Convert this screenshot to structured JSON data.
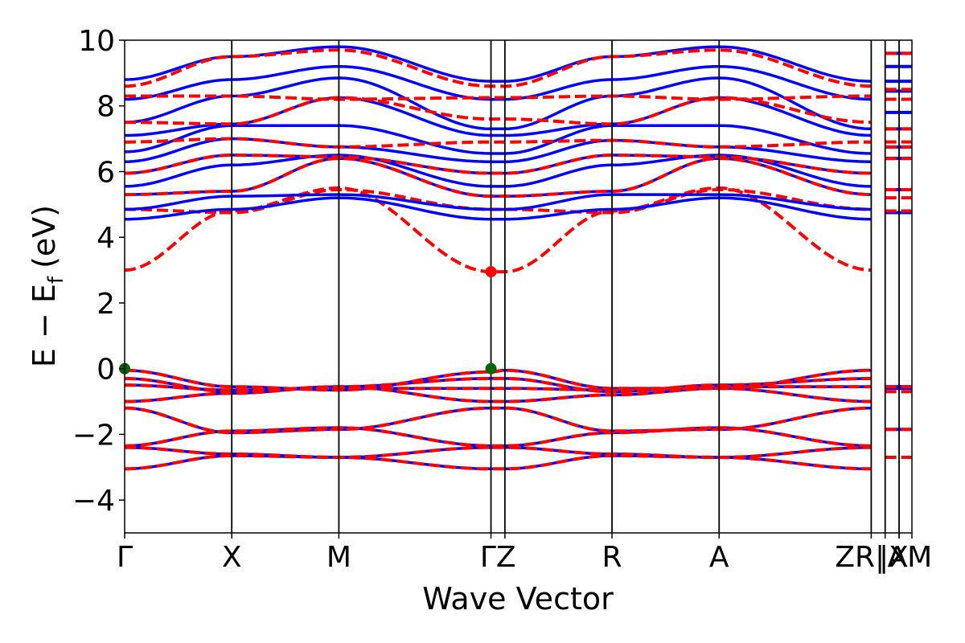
{
  "chart_data": {
    "type": "line",
    "title": "",
    "xlabel": "Wave Vector",
    "ylabel": "E − E",
    "ylabel_subscript": "f",
    "ylabel_unit": "(eV)",
    "ylim": [
      -5,
      10
    ],
    "yticks": [
      -4,
      -2,
      0,
      2,
      4,
      6,
      8,
      10
    ],
    "ytick_labels": [
      "−4",
      "−2",
      "0",
      "2",
      "4",
      "6",
      "8",
      "10"
    ],
    "xlim": [
      0,
      7.35
    ],
    "kpoints": [
      {
        "label": "Γ",
        "x": 0
      },
      {
        "label": "X",
        "x": 1.0
      },
      {
        "label": "M",
        "x": 2.0
      },
      {
        "label": "Γ",
        "x": 3.42
      },
      {
        "label": "Z",
        "x": 3.55
      },
      {
        "label": "R",
        "x": 4.55
      },
      {
        "label": "A",
        "x": 5.55
      },
      {
        "label": "Z",
        "x": 6.97
      },
      {
        "label": "R|",
        "x": 7.1
      },
      {
        "label": "|X",
        "x": 7.23
      },
      {
        "label": "A",
        "x": 7.23
      },
      {
        "label": "M",
        "x": 7.35
      }
    ],
    "tick_label_text": [
      "Γ",
      "X",
      "M",
      "ΓZ",
      "R",
      "A",
      "ZR|",
      "|X",
      "AM"
    ],
    "grid": false,
    "legend": "none",
    "colors": {
      "spin_up": "#0000ff",
      "spin_down": "#ff0000",
      "vbm": "#006400",
      "cbm": "#ff0000"
    },
    "x_nodes": [
      0,
      1.0,
      2.0,
      3.42,
      3.55,
      4.55,
      5.55,
      6.97
    ],
    "series": [
      {
        "style": "solid",
        "color": "#0000ff",
        "values": [
          -0.05,
          -0.55,
          -0.65,
          -0.1,
          -0.05,
          -0.6,
          -0.6,
          -0.05
        ]
      },
      {
        "style": "solid",
        "color": "#0000ff",
        "values": [
          -0.3,
          -0.7,
          -0.55,
          -0.3,
          -0.3,
          -0.7,
          -0.5,
          -0.3
        ]
      },
      {
        "style": "solid",
        "color": "#0000ff",
        "values": [
          -0.5,
          -0.65,
          -0.6,
          -0.6,
          -0.6,
          -0.65,
          -0.55,
          -0.55
        ]
      },
      {
        "style": "solid",
        "color": "#0000ff",
        "values": [
          -1.0,
          -0.75,
          -0.55,
          -1.0,
          -1.0,
          -0.8,
          -0.6,
          -1.0
        ]
      },
      {
        "style": "solid",
        "color": "#0000ff",
        "values": [
          -1.2,
          -1.95,
          -1.85,
          -1.2,
          -1.2,
          -1.9,
          -1.85,
          -1.2
        ]
      },
      {
        "style": "solid",
        "color": "#0000ff",
        "values": [
          -2.35,
          -1.9,
          -1.8,
          -2.35,
          -2.35,
          -1.95,
          -1.8,
          -2.35
        ]
      },
      {
        "style": "solid",
        "color": "#0000ff",
        "values": [
          -2.4,
          -2.6,
          -2.7,
          -2.4,
          -2.4,
          -2.6,
          -2.7,
          -2.4
        ]
      },
      {
        "style": "solid",
        "color": "#0000ff",
        "values": [
          -3.05,
          -2.65,
          -2.7,
          -3.05,
          -3.05,
          -2.65,
          -2.7,
          -3.05
        ]
      },
      {
        "style": "dashed",
        "color": "#ff0000",
        "values": [
          -0.05,
          -0.55,
          -0.65,
          -0.1,
          -0.05,
          -0.6,
          -0.6,
          -0.05
        ]
      },
      {
        "style": "dashed",
        "color": "#ff0000",
        "values": [
          -0.3,
          -0.7,
          -0.55,
          -0.3,
          -0.3,
          -0.7,
          -0.5,
          -0.3
        ]
      },
      {
        "style": "dashed",
        "color": "#ff0000",
        "values": [
          -0.5,
          -0.65,
          -0.6,
          -0.6,
          -0.6,
          -0.65,
          -0.55,
          -0.55
        ]
      },
      {
        "style": "dashed",
        "color": "#ff0000",
        "values": [
          -1.0,
          -0.75,
          -0.55,
          -1.0,
          -1.0,
          -0.8,
          -0.6,
          -1.0
        ]
      },
      {
        "style": "dashed",
        "color": "#ff0000",
        "values": [
          -1.2,
          -1.95,
          -1.85,
          -1.2,
          -1.2,
          -1.9,
          -1.85,
          -1.2
        ]
      },
      {
        "style": "dashed",
        "color": "#ff0000",
        "values": [
          -2.35,
          -1.9,
          -1.8,
          -2.35,
          -2.35,
          -1.95,
          -1.8,
          -2.35
        ]
      },
      {
        "style": "dashed",
        "color": "#ff0000",
        "values": [
          -2.4,
          -2.6,
          -2.7,
          -2.4,
          -2.4,
          -2.6,
          -2.7,
          -2.4
        ]
      },
      {
        "style": "dashed",
        "color": "#ff0000",
        "values": [
          -3.05,
          -2.65,
          -2.7,
          -3.05,
          -3.05,
          -2.65,
          -2.7,
          -3.05
        ]
      },
      {
        "style": "dashed",
        "color": "#ff0000",
        "values": [
          3.0,
          4.8,
          5.5,
          2.95,
          2.95,
          4.8,
          5.5,
          3.0
        ]
      },
      {
        "style": "dashed",
        "color": "#ff0000",
        "values": [
          4.85,
          4.75,
          5.45,
          4.85,
          4.85,
          4.75,
          5.45,
          4.85
        ]
      },
      {
        "style": "solid",
        "color": "#0000ff",
        "values": [
          4.55,
          4.85,
          5.2,
          4.55,
          4.55,
          4.85,
          5.2,
          4.55
        ]
      },
      {
        "style": "solid",
        "color": "#0000ff",
        "values": [
          4.85,
          5.25,
          5.3,
          4.85,
          4.85,
          5.3,
          5.3,
          4.85
        ]
      },
      {
        "style": "solid",
        "color": "#0000ff",
        "values": [
          5.3,
          5.4,
          6.4,
          5.25,
          5.25,
          5.4,
          6.4,
          5.3
        ]
      },
      {
        "style": "solid",
        "color": "#0000ff",
        "values": [
          5.55,
          6.2,
          6.5,
          5.55,
          5.55,
          6.2,
          6.5,
          5.55
        ]
      },
      {
        "style": "solid",
        "color": "#0000ff",
        "values": [
          5.95,
          6.5,
          6.45,
          5.95,
          5.95,
          6.5,
          6.45,
          5.95
        ]
      },
      {
        "style": "solid",
        "color": "#0000ff",
        "values": [
          6.3,
          7.0,
          6.75,
          6.3,
          6.3,
          6.95,
          6.75,
          6.3
        ]
      },
      {
        "style": "solid",
        "color": "#0000ff",
        "values": [
          6.6,
          7.4,
          7.4,
          6.55,
          6.55,
          7.4,
          7.4,
          6.55
        ]
      },
      {
        "style": "solid",
        "color": "#0000ff",
        "values": [
          7.1,
          7.45,
          8.25,
          7.1,
          7.1,
          7.45,
          8.25,
          7.1
        ]
      },
      {
        "style": "solid",
        "color": "#0000ff",
        "values": [
          7.5,
          8.3,
          8.85,
          7.3,
          7.3,
          8.3,
          8.85,
          7.3
        ]
      },
      {
        "style": "solid",
        "color": "#0000ff",
        "values": [
          8.2,
          8.8,
          9.2,
          8.2,
          8.2,
          8.8,
          9.2,
          8.2
        ]
      },
      {
        "style": "solid",
        "color": "#0000ff",
        "values": [
          8.8,
          9.5,
          9.8,
          8.75,
          8.75,
          9.5,
          9.8,
          8.75
        ]
      },
      {
        "style": "dashed",
        "color": "#ff0000",
        "values": [
          5.3,
          5.4,
          6.4,
          5.25,
          5.25,
          5.4,
          6.4,
          5.3
        ]
      },
      {
        "style": "dashed",
        "color": "#ff0000",
        "values": [
          5.95,
          6.5,
          6.45,
          5.95,
          5.95,
          6.5,
          6.45,
          5.95
        ]
      },
      {
        "style": "dashed",
        "color": "#ff0000",
        "values": [
          6.9,
          7.0,
          6.75,
          6.9,
          6.9,
          6.95,
          6.75,
          6.9
        ]
      },
      {
        "style": "dashed",
        "color": "#ff0000",
        "values": [
          7.5,
          7.45,
          8.25,
          7.6,
          7.6,
          7.45,
          8.25,
          7.5
        ]
      },
      {
        "style": "dashed",
        "color": "#ff0000",
        "values": [
          8.3,
          8.3,
          8.2,
          8.25,
          8.25,
          8.3,
          8.2,
          8.3
        ]
      },
      {
        "style": "dashed",
        "color": "#ff0000",
        "values": [
          8.6,
          9.5,
          9.7,
          8.6,
          8.6,
          9.5,
          9.7,
          8.6
        ]
      }
    ],
    "tail_levels_blue": [
      -0.55,
      -0.6,
      -1.85,
      4.75,
      5.45,
      6.4,
      6.75,
      7.3,
      7.8,
      8.45,
      8.75,
      9.2,
      9.6
    ],
    "tail_levels_red": [
      -0.55,
      -0.7,
      -1.85,
      -2.7,
      4.8,
      5.2,
      5.45,
      6.4,
      6.75,
      6.9,
      7.3,
      8.2,
      8.5,
      9.6
    ],
    "markers": [
      {
        "x": 0,
        "y": 0.0,
        "color": "#006400"
      },
      {
        "x": 3.42,
        "y": 0.0,
        "color": "#006400"
      },
      {
        "x": 3.42,
        "y": 2.95,
        "color": "#ff0000"
      }
    ]
  }
}
